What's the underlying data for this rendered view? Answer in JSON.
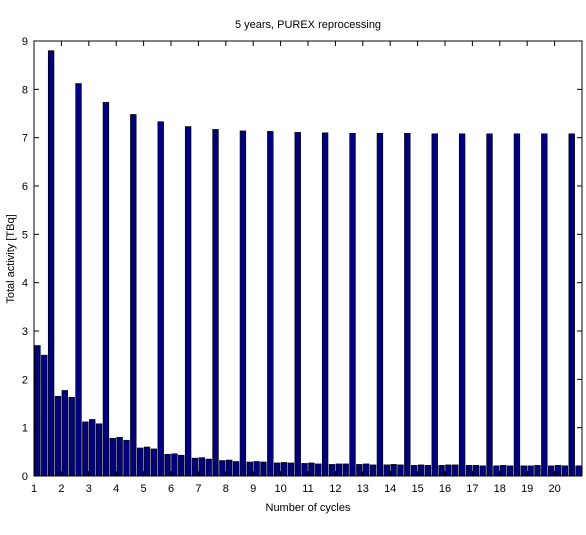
{
  "chart_data": {
    "type": "bar",
    "title": "5 years, PUREX reprocessing",
    "xlabel": "Number of cycles",
    "ylabel": "Total activity [TBq]",
    "xlim": [
      1,
      21
    ],
    "ylim": [
      0,
      9
    ],
    "xticks": [
      1,
      2,
      3,
      4,
      5,
      6,
      7,
      8,
      9,
      10,
      11,
      12,
      13,
      14,
      15,
      16,
      17,
      18,
      19,
      20
    ],
    "yticks": [
      0,
      1,
      2,
      3,
      4,
      5,
      6,
      7,
      8,
      9
    ],
    "grid": false,
    "bar_color": "#00007f",
    "bar_edge_color": "#000000",
    "series": [
      {
        "x": [
          1.0,
          1.25,
          1.5,
          1.75,
          2.0,
          2.25,
          2.5,
          2.75,
          3.0,
          3.25,
          3.5,
          3.75,
          4.0,
          4.25,
          4.5,
          4.75,
          5.0,
          5.25,
          5.5,
          5.75,
          6.0,
          6.25,
          6.5,
          6.75,
          7.0,
          7.25,
          7.5,
          7.75,
          8.0,
          8.25,
          8.5,
          8.75,
          9.0,
          9.25,
          9.5,
          9.75,
          10.0,
          10.25,
          10.5,
          10.75,
          11.0,
          11.25,
          11.5,
          11.75,
          12.0,
          12.25,
          12.5,
          12.75,
          13.0,
          13.25,
          13.5,
          13.75,
          14.0,
          14.25,
          14.5,
          14.75,
          15.0,
          15.25,
          15.5,
          15.75,
          16.0,
          16.25,
          16.5,
          16.75,
          17.0,
          17.25,
          17.5,
          17.75,
          18.0,
          18.25,
          18.5,
          18.75,
          19.0,
          19.25,
          19.5,
          19.75,
          20.0,
          20.25,
          20.5,
          20.75
        ],
        "values": [
          2.7,
          2.5,
          8.8,
          1.65,
          1.77,
          1.63,
          8.12,
          1.12,
          1.17,
          1.08,
          7.73,
          0.78,
          0.8,
          0.74,
          7.48,
          0.58,
          0.6,
          0.56,
          7.33,
          0.45,
          0.46,
          0.43,
          7.23,
          0.37,
          0.38,
          0.35,
          7.17,
          0.32,
          0.33,
          0.3,
          7.14,
          0.29,
          0.3,
          0.29,
          7.13,
          0.27,
          0.28,
          0.27,
          7.11,
          0.26,
          0.27,
          0.25,
          7.1,
          0.24,
          0.25,
          0.25,
          7.09,
          0.24,
          0.25,
          0.23,
          7.09,
          0.23,
          0.24,
          0.23,
          7.09,
          0.22,
          0.23,
          0.22,
          7.08,
          0.22,
          0.23,
          0.23,
          7.08,
          0.22,
          0.22,
          0.21,
          7.08,
          0.21,
          0.22,
          0.21,
          7.08,
          0.21,
          0.21,
          0.22,
          7.08,
          0.21,
          0.22,
          0.21,
          7.08,
          0.21
        ]
      }
    ]
  }
}
